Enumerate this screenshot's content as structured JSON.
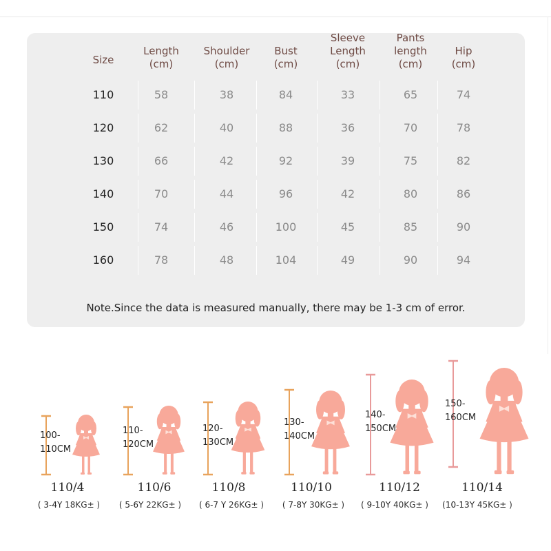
{
  "table": {
    "headers": [
      {
        "lines": [
          "Size"
        ]
      },
      {
        "lines": [
          "Length",
          "(cm)"
        ]
      },
      {
        "lines": [
          "Shoulder",
          "(cm)"
        ]
      },
      {
        "lines": [
          "Bust",
          "(cm)"
        ]
      },
      {
        "lines": [
          "Sleeve",
          "Length",
          "(cm)"
        ]
      },
      {
        "lines": [
          "Pants",
          "length",
          "(cm)"
        ]
      },
      {
        "lines": [
          "Hip",
          "(cm)"
        ]
      }
    ],
    "rows": [
      [
        "110",
        "58",
        "38",
        "84",
        "33",
        "65",
        "74"
      ],
      [
        "120",
        "62",
        "40",
        "88",
        "36",
        "70",
        "78"
      ],
      [
        "130",
        "66",
        "42",
        "92",
        "39",
        "75",
        "82"
      ],
      [
        "140",
        "70",
        "44",
        "96",
        "42",
        "80",
        "86"
      ],
      [
        "150",
        "74",
        "46",
        "100",
        "45",
        "85",
        "90"
      ],
      [
        "160",
        "78",
        "48",
        "104",
        "49",
        "90",
        "94"
      ]
    ],
    "note": "Note.Since the data is measured manually, there may be 1-3 cm of error."
  },
  "figures": [
    {
      "height_top": "100-",
      "height_bottom": "110CM",
      "size_label": "110/4",
      "age": "( 3-4Y",
      "weight": "18KG± )",
      "bar_color": "#e8a35c"
    },
    {
      "height_top": "110-",
      "height_bottom": "120CM",
      "size_label": "110/6",
      "age": "( 5-6Y",
      "weight": "22KG± )",
      "bar_color": "#e8a35c"
    },
    {
      "height_top": "120-",
      "height_bottom": "130CM",
      "size_label": "110/8",
      "age": "( 6-7 Y",
      "weight": "26KG± )",
      "bar_color": "#e8a35c"
    },
    {
      "height_top": "130-",
      "height_bottom": "140CM",
      "size_label": "110/10",
      "age": "( 7-8Y",
      "weight": "30KG± )",
      "bar_color": "#e8a35c"
    },
    {
      "height_top": "140-",
      "height_bottom": "150CM",
      "size_label": "110/12",
      "age": "( 9-10Y",
      "weight": "40KG± )",
      "bar_color": "#e89a9a"
    },
    {
      "height_top": "150-",
      "height_bottom": "160CM",
      "size_label": "110/14",
      "age": "(10-13Y",
      "weight": "45KG± )",
      "bar_color": "#e89a9a"
    }
  ],
  "colors": {
    "panel": "#eeeeee",
    "silhouette": "#f8a99a",
    "header_text": "#6e4a44"
  }
}
